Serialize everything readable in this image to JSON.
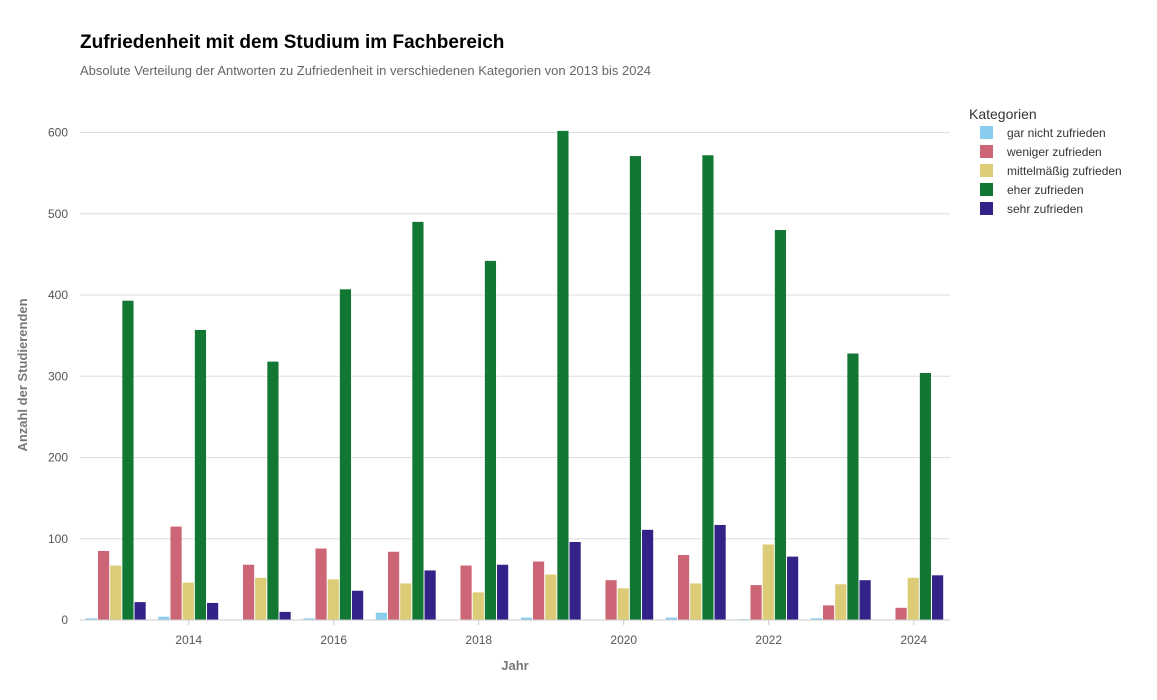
{
  "chart_data": {
    "type": "bar",
    "title": "Zufriedenheit mit dem Studium im Fachbereich",
    "subtitle": "Absolute Verteilung der Antworten zu Zufriedenheit in verschiedenen Kategorien von 2013 bis 2024",
    "xlabel": "Jahr",
    "ylabel": "Anzahl der Studierenden",
    "x": [
      2013,
      2014,
      2015,
      2016,
      2017,
      2018,
      2019,
      2020,
      2021,
      2022,
      2023,
      2024
    ],
    "xticks": [
      2014,
      2016,
      2018,
      2020,
      2022,
      2024
    ],
    "ylim": [
      0,
      640
    ],
    "yticks": [
      0,
      100,
      200,
      300,
      400,
      500,
      600
    ],
    "grid": true,
    "legend": {
      "title": "Kategorien",
      "position": "right"
    },
    "series": [
      {
        "name": "gar nicht zufrieden",
        "color": "#88ccee",
        "values": [
          2,
          4,
          0,
          2,
          9,
          0,
          3,
          0,
          3,
          1,
          2,
          0
        ]
      },
      {
        "name": "weniger zufrieden",
        "color": "#cc6677",
        "values": [
          85,
          115,
          68,
          88,
          84,
          67,
          72,
          49,
          80,
          43,
          18,
          15
        ]
      },
      {
        "name": "mittelmäßig zufrieden",
        "color": "#ddcc77",
        "values": [
          67,
          46,
          52,
          50,
          45,
          34,
          56,
          39,
          45,
          93,
          44,
          52
        ]
      },
      {
        "name": "eher zufrieden",
        "color": "#117733",
        "values": [
          393,
          357,
          318,
          407,
          490,
          442,
          602,
          571,
          572,
          480,
          328,
          304
        ]
      },
      {
        "name": "sehr zufrieden",
        "color": "#332288",
        "values": [
          22,
          21,
          10,
          36,
          61,
          68,
          96,
          111,
          117,
          78,
          49,
          55
        ]
      }
    ]
  }
}
